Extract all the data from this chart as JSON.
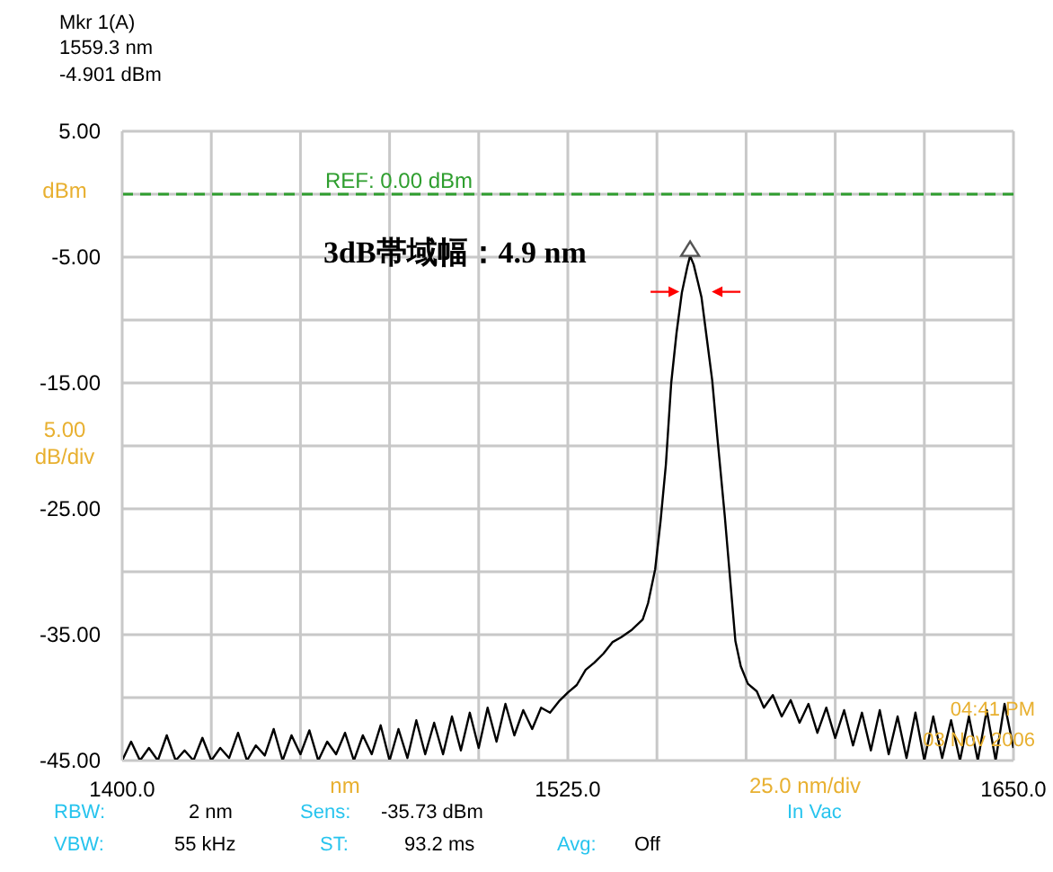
{
  "chart_data": {
    "type": "line",
    "xlabel": "nm",
    "x": [
      1400,
      1402.5,
      1405,
      1407.5,
      1410,
      1412.5,
      1415,
      1417.5,
      1420,
      1422.5,
      1425,
      1427.5,
      1430,
      1432.5,
      1435,
      1437.5,
      1440,
      1442.5,
      1445,
      1447.5,
      1450,
      1452.5,
      1455,
      1457.5,
      1460,
      1462.5,
      1465,
      1467.5,
      1470,
      1472.5,
      1475,
      1477.5,
      1480,
      1482.5,
      1485,
      1487.5,
      1490,
      1492.5,
      1495,
      1497.5,
      1500,
      1502.5,
      1505,
      1507.5,
      1510,
      1512.5,
      1515,
      1517.5,
      1520,
      1522.5,
      1525,
      1527.5,
      1530,
      1532.5,
      1535,
      1537.5,
      1540,
      1543,
      1546,
      1547.5,
      1549.5,
      1551,
      1552.5,
      1554,
      1555.5,
      1557,
      1558.5,
      1559.3,
      1560.3,
      1561.5,
      1562.5,
      1564,
      1565.5,
      1567,
      1569,
      1570.5,
      1572,
      1573.5,
      1575.5,
      1578,
      1580,
      1582.5,
      1585,
      1587.5,
      1590,
      1592.5,
      1595,
      1597.5,
      1600,
      1602.5,
      1605,
      1607.5,
      1610,
      1612.5,
      1615,
      1617.5,
      1620,
      1622.5,
      1625,
      1627.5,
      1630,
      1632.5,
      1635,
      1637.5,
      1640,
      1642.5,
      1645,
      1647.5,
      1650
    ],
    "series": [
      {
        "color": "#000000",
        "values": [
          -45,
          -43.5,
          -45,
          -44,
          -45,
          -43,
          -45,
          -44.2,
          -45,
          -43.2,
          -45,
          -44,
          -44.8,
          -42.8,
          -45,
          -43.8,
          -44.6,
          -42.5,
          -45,
          -43,
          -44.5,
          -42.6,
          -45,
          -43.5,
          -44.5,
          -42.8,
          -45,
          -43,
          -44.5,
          -42.2,
          -45,
          -42.5,
          -44.8,
          -41.8,
          -44.5,
          -42,
          -44.5,
          -41.5,
          -44.2,
          -41.2,
          -44,
          -40.8,
          -43.5,
          -40.5,
          -43,
          -41,
          -42.5,
          -40.8,
          -41.2,
          -40.3,
          -39.6,
          -39,
          -37.8,
          -37.2,
          -36.5,
          -35.6,
          -35.2,
          -34.6,
          -33.8,
          -32.5,
          -29.8,
          -26,
          -21.5,
          -15,
          -11,
          -7.8,
          -5.8,
          -4.9,
          -5.6,
          -7,
          -8.2,
          -11.5,
          -14.8,
          -19.5,
          -25.5,
          -30.5,
          -35.5,
          -37.5,
          -38.9,
          -39.5,
          -40.8,
          -39.8,
          -41.5,
          -40.2,
          -42,
          -40.5,
          -42.8,
          -40.8,
          -43.2,
          -41,
          -43.8,
          -41.2,
          -44.2,
          -41,
          -44.5,
          -41.5,
          -44.8,
          -41.2,
          -45,
          -41.5,
          -44.8,
          -41.8,
          -45,
          -41.5,
          -45,
          -41,
          -45,
          -40.5,
          -44
        ]
      }
    ],
    "xlim": [
      1400,
      1650
    ],
    "xticks": [
      {
        "value": 1400,
        "label": "1400.0"
      },
      {
        "value": 1425,
        "label": null
      },
      {
        "value": 1450,
        "label": null
      },
      {
        "value": 1475,
        "label": null
      },
      {
        "value": 1500,
        "label": null
      },
      {
        "value": 1525,
        "label": "1525.0"
      },
      {
        "value": 1550,
        "label": null
      },
      {
        "value": 1575,
        "label": null
      },
      {
        "value": 1600,
        "label": null
      },
      {
        "value": 1625,
        "label": null
      },
      {
        "value": 1650,
        "label": "1650.0"
      }
    ],
    "ylim": [
      -45,
      5
    ],
    "yticks": [
      {
        "value": -45,
        "label": "-45.00"
      },
      {
        "value": -40,
        "label": null
      },
      {
        "value": -35,
        "label": "-35.00"
      },
      {
        "value": -30,
        "label": null
      },
      {
        "value": -25,
        "label": "-25.00"
      },
      {
        "value": -20,
        "label": null
      },
      {
        "value": -15,
        "label": "-15.00"
      },
      {
        "value": -10,
        "label": null
      },
      {
        "value": -5,
        "label": "-5.00"
      },
      {
        "value": 0,
        "label": null
      },
      {
        "value": 5,
        "label": "5.00"
      }
    ],
    "grid": true,
    "marker": "none",
    "line_style": "solid",
    "ref_lines": [
      {
        "axis": "y",
        "value": 0,
        "label": "REF: 0.00 dBm",
        "color": "#2e9e2e",
        "line_style": "dashed"
      }
    ],
    "annotations": [
      "Mkr 1(A)",
      "1559.3 nm",
      "-4.901 dBm",
      "3dB帯域幅：4.9 nm",
      "25.0 nm/div",
      "RBW:",
      "2 nm",
      "Sens:",
      "-35.73 dBm",
      "In Vac",
      "VBW:",
      "55 kHz",
      "ST:",
      "93.2 ms",
      "Avg:",
      "Off",
      "04:41 PM",
      "03 Nov 2006",
      "dBm",
      "5.00 dB/div"
    ]
  }
}
